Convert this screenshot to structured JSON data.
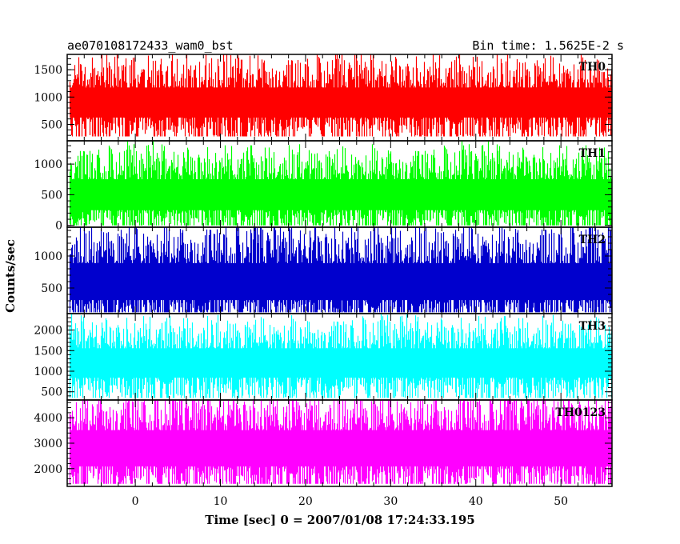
{
  "chart_data": {
    "type": "line",
    "title": "ae070108172433_wam0_bst",
    "subtitle": "Bin time: 1.5625E-2 s",
    "xlabel": "Time [sec] 0 = 2007/01/08 17:24:33.195",
    "ylabel": "Counts/sec",
    "xlim": [
      -8,
      56
    ],
    "x_ticks": [
      0,
      10,
      20,
      30,
      40,
      50
    ],
    "x_tick_labels": [
      "0",
      "10",
      "20",
      "30",
      "40",
      "50"
    ],
    "grid": false,
    "panels": [
      {
        "name": "TH0",
        "color": "#ff0000",
        "ylim": [
          200,
          1780
        ],
        "y_ticks": [
          500,
          1000,
          1500
        ],
        "y_tick_labels": [
          "500",
          "1000",
          "1500"
        ],
        "x_range": [
          -7.7,
          56
        ],
        "mean": 900,
        "low_typical": 400,
        "high_typical": 1400,
        "min": 280,
        "max": 1780
      },
      {
        "name": "TH1",
        "color": "#00ff00",
        "ylim": [
          -30,
          1380
        ],
        "y_ticks": [
          0,
          500,
          1000
        ],
        "y_tick_labels": [
          "0",
          "500",
          "1000"
        ],
        "x_range": [
          -7.7,
          56
        ],
        "mean": 500,
        "low_typical": 80,
        "high_typical": 1000,
        "min": 0,
        "max": 1380
      },
      {
        "name": "TH2",
        "color": "#0000cd",
        "ylim": [
          100,
          1450
        ],
        "y_ticks": [
          500,
          1000
        ],
        "y_tick_labels": [
          "500",
          "1000"
        ],
        "x_range": [
          -7.7,
          56
        ],
        "mean": 600,
        "low_typical": 200,
        "high_typical": 1250,
        "min": 120,
        "max": 1450
      },
      {
        "name": "TH3",
        "color": "#00ffff",
        "ylim": [
          300,
          2400
        ],
        "y_ticks": [
          500,
          1000,
          1500,
          2000
        ],
        "y_tick_labels": [
          "500",
          "1000",
          "1500",
          "2000"
        ],
        "x_range": [
          -7.7,
          56
        ],
        "mean": 1200,
        "low_typical": 500,
        "high_typical": 1800,
        "min": 350,
        "max": 2400
      },
      {
        "name": "TH0123",
        "color": "#ff00ff",
        "ylim": [
          1300,
          4700
        ],
        "y_ticks": [
          2000,
          3000,
          4000
        ],
        "y_tick_labels": [
          "2000",
          "3000",
          "4000"
        ],
        "x_range": [
          -7.7,
          56
        ],
        "mean": 2800,
        "low_typical": 1700,
        "high_typical": 4300,
        "min": 1400,
        "max": 4700
      }
    ]
  }
}
